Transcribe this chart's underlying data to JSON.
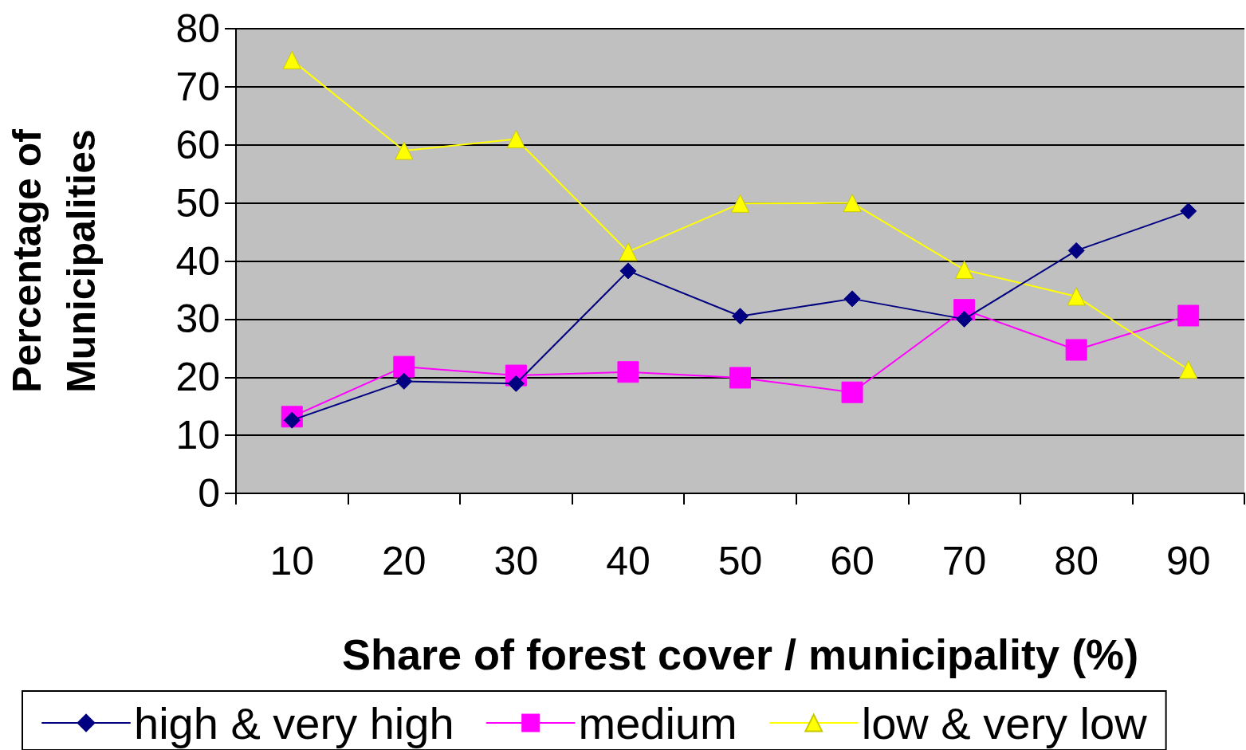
{
  "chart_data": {
    "type": "line",
    "xlabel": "Share of forest cover / municipality (%)",
    "ylabel": "Percentage of\nMunicipalities",
    "categories": [
      "10",
      "20",
      "30",
      "40",
      "50",
      "60",
      "70",
      "80",
      "90"
    ],
    "series": [
      {
        "name": "high & very high",
        "color": "#000080",
        "marker": "diamond",
        "values": [
          12.6,
          19.3,
          18.9,
          38.3,
          30.5,
          33.5,
          30.0,
          41.8,
          48.6
        ]
      },
      {
        "name": "medium",
        "color": "#ff00ff",
        "marker": "square",
        "values": [
          13.2,
          21.8,
          20.3,
          20.9,
          19.9,
          17.4,
          31.6,
          24.7,
          30.6
        ]
      },
      {
        "name": "low & very low",
        "color": "#ffff00",
        "marker": "triangle",
        "values": [
          74.6,
          59.0,
          61.0,
          41.6,
          49.9,
          50.0,
          38.5,
          33.9,
          21.3
        ]
      }
    ],
    "ylim": [
      0,
      80
    ],
    "yticks": [
      0,
      10,
      20,
      30,
      40,
      50,
      60,
      70,
      80
    ],
    "grid": "y",
    "legend": "bottom",
    "line_style": "solid"
  }
}
